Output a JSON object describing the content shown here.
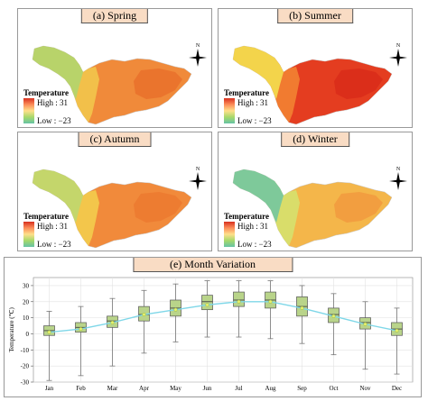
{
  "maps": [
    {
      "id": "spring",
      "title": "(a) Spring",
      "palette": {
        "west": "#b8d36a",
        "mid": "#f2c04a",
        "east": "#f08a3a",
        "hot": "#e9702c"
      }
    },
    {
      "id": "summer",
      "title": "(b) Summer",
      "palette": {
        "west": "#f3d44b",
        "mid": "#f17b30",
        "east": "#e43d20",
        "hot": "#d92b1a"
      }
    },
    {
      "id": "autumn",
      "title": "(c) Autumn",
      "palette": {
        "west": "#c4d66b",
        "mid": "#f3c64b",
        "east": "#f18a3b",
        "hot": "#ec7930"
      }
    },
    {
      "id": "winter",
      "title": "(d) Winter",
      "palette": {
        "west": "#7ec99a",
        "mid": "#d9dd6a",
        "east": "#f4b64a",
        "hot": "#f19a3e"
      }
    }
  ],
  "legend": {
    "title": "Temperature",
    "high": "High : 31",
    "low": "Low : −23"
  },
  "compass": {
    "label": "N"
  },
  "chart_data": {
    "type": "box",
    "title": "(e) Month Variation",
    "xlabel": "",
    "ylabel": "Temperature (℃)",
    "ylim": [
      -30,
      35
    ],
    "yticks": [
      -30,
      -20,
      -10,
      0,
      10,
      20,
      30
    ],
    "grid": true,
    "categories": [
      "Jan",
      "Feb",
      "Mar",
      "Apr",
      "May",
      "Jun",
      "Jul",
      "Aug",
      "Sep",
      "Oct",
      "Nov",
      "Dec"
    ],
    "boxes": [
      {
        "min": -29,
        "q1": -1,
        "median": 2,
        "q3": 5,
        "max": 14,
        "mean": 1
      },
      {
        "min": -26,
        "q1": 1,
        "median": 4,
        "q3": 7,
        "max": 17,
        "mean": 3
      },
      {
        "min": -20,
        "q1": 4,
        "median": 8,
        "q3": 11,
        "max": 22,
        "mean": 7
      },
      {
        "min": -12,
        "q1": 8,
        "median": 12,
        "q3": 17,
        "max": 27,
        "mean": 12
      },
      {
        "min": -5,
        "q1": 11,
        "median": 16,
        "q3": 21,
        "max": 31,
        "mean": 15
      },
      {
        "min": -2,
        "q1": 15,
        "median": 20,
        "q3": 24,
        "max": 33,
        "mean": 18
      },
      {
        "min": -2,
        "q1": 17,
        "median": 21,
        "q3": 26,
        "max": 33,
        "mean": 20
      },
      {
        "min": -3,
        "q1": 16,
        "median": 21,
        "q3": 26,
        "max": 33,
        "mean": 20
      },
      {
        "min": -6,
        "q1": 11,
        "median": 17,
        "q3": 23,
        "max": 30,
        "mean": 16
      },
      {
        "min": -13,
        "q1": 7,
        "median": 12,
        "q3": 16,
        "max": 25,
        "mean": 11
      },
      {
        "min": -22,
        "q1": 3,
        "median": 7,
        "q3": 10,
        "max": 20,
        "mean": 6
      },
      {
        "min": -25,
        "q1": -1,
        "median": 3,
        "q3": 7,
        "max": 16,
        "mean": 2
      }
    ],
    "colors": {
      "box": "#b9d48a",
      "box_stroke": "#555555",
      "mean_line": "#7fd7e8",
      "mean_point": "#e8f070",
      "whisker": "#777777"
    }
  }
}
